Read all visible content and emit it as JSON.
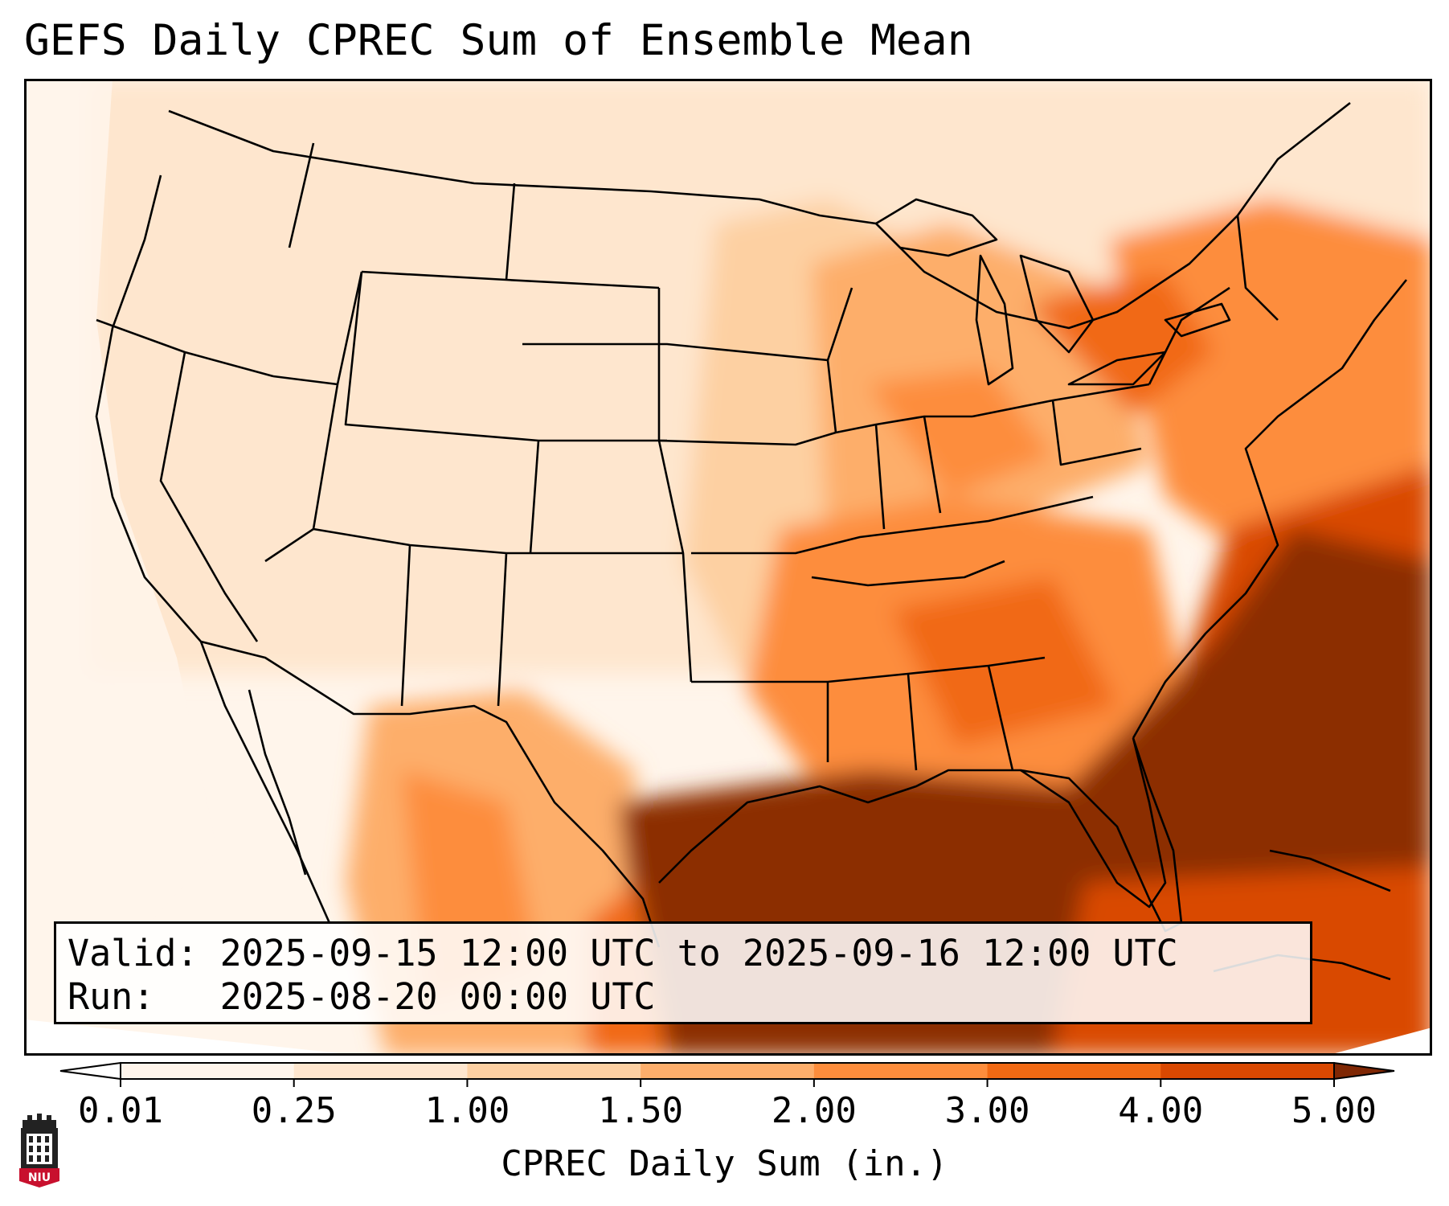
{
  "title": "GEFS Daily CPREC Sum of Ensemble Mean",
  "info": {
    "valid_label": "Valid:",
    "valid_value": "2025-09-15 12:00 UTC to 2025-09-16 12:00 UTC",
    "run_label": "Run:",
    "run_value": "2025-08-20 00:00 UTC"
  },
  "colorbar": {
    "label": "CPREC Daily Sum (in.)",
    "ticks": [
      "0.01",
      "0.25",
      "1.00",
      "1.50",
      "2.00",
      "3.00",
      "4.00",
      "5.00"
    ],
    "colors": [
      "#fff5eb",
      "#fee6ce",
      "#fdd0a2",
      "#fdae6b",
      "#fd8d3c",
      "#f16913",
      "#d94801",
      "#8c2d04"
    ],
    "under_color": "#ffffff",
    "over_color": "#7f2704"
  },
  "map": {
    "land_color": "#fee6ce",
    "border_color": "#000000"
  },
  "logo": {
    "text": "NIU",
    "color": "#c8102e"
  }
}
